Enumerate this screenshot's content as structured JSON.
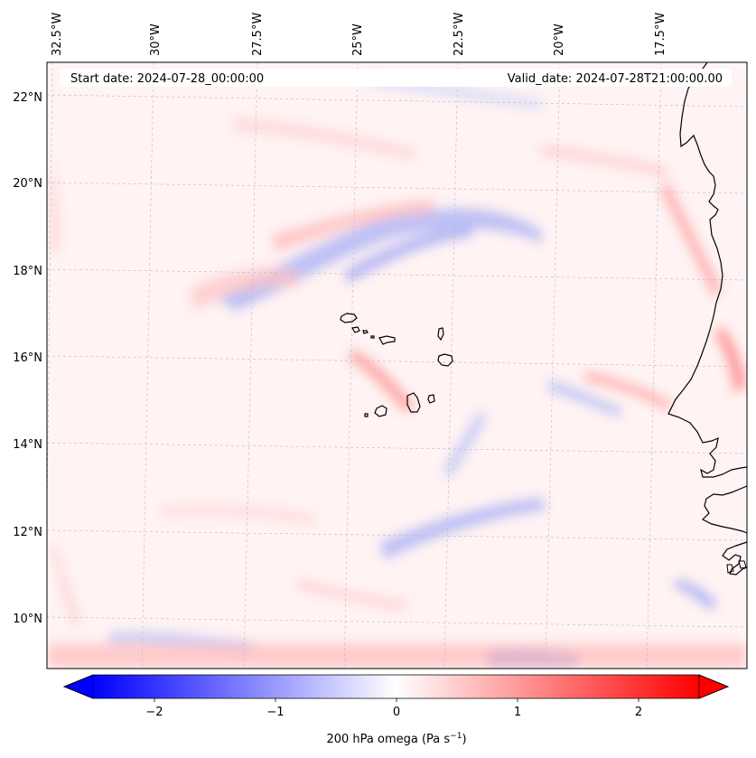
{
  "map": {
    "start_date": "Start date: 2024-07-28_00:00:00",
    "valid_date": "Valid_date: 2024-07-28T21:00:00.00",
    "lon_labels": [
      "32.5°W",
      "30°W",
      "27.5°W",
      "25°W",
      "22.5°W",
      "20°W",
      "17.5°W"
    ],
    "lat_labels": [
      "22°N",
      "20°N",
      "18°N",
      "16°N",
      "14°N",
      "12°N",
      "10°N"
    ],
    "gridlines": true,
    "field": "200 hPa omega",
    "region": "Cabo Verde and West African coast"
  },
  "colorbar": {
    "label_prefix": "200 hPa omega (Pa s",
    "label_exp": "−1",
    "label_suffix": ")",
    "ticks": [
      "−2",
      "−1",
      "0",
      "1",
      "2"
    ],
    "range": [
      -2.5,
      2.5
    ],
    "extend": "both",
    "colors": {
      "low": "#0000ff",
      "mid": "#ffffff",
      "high": "#ff0000"
    }
  }
}
